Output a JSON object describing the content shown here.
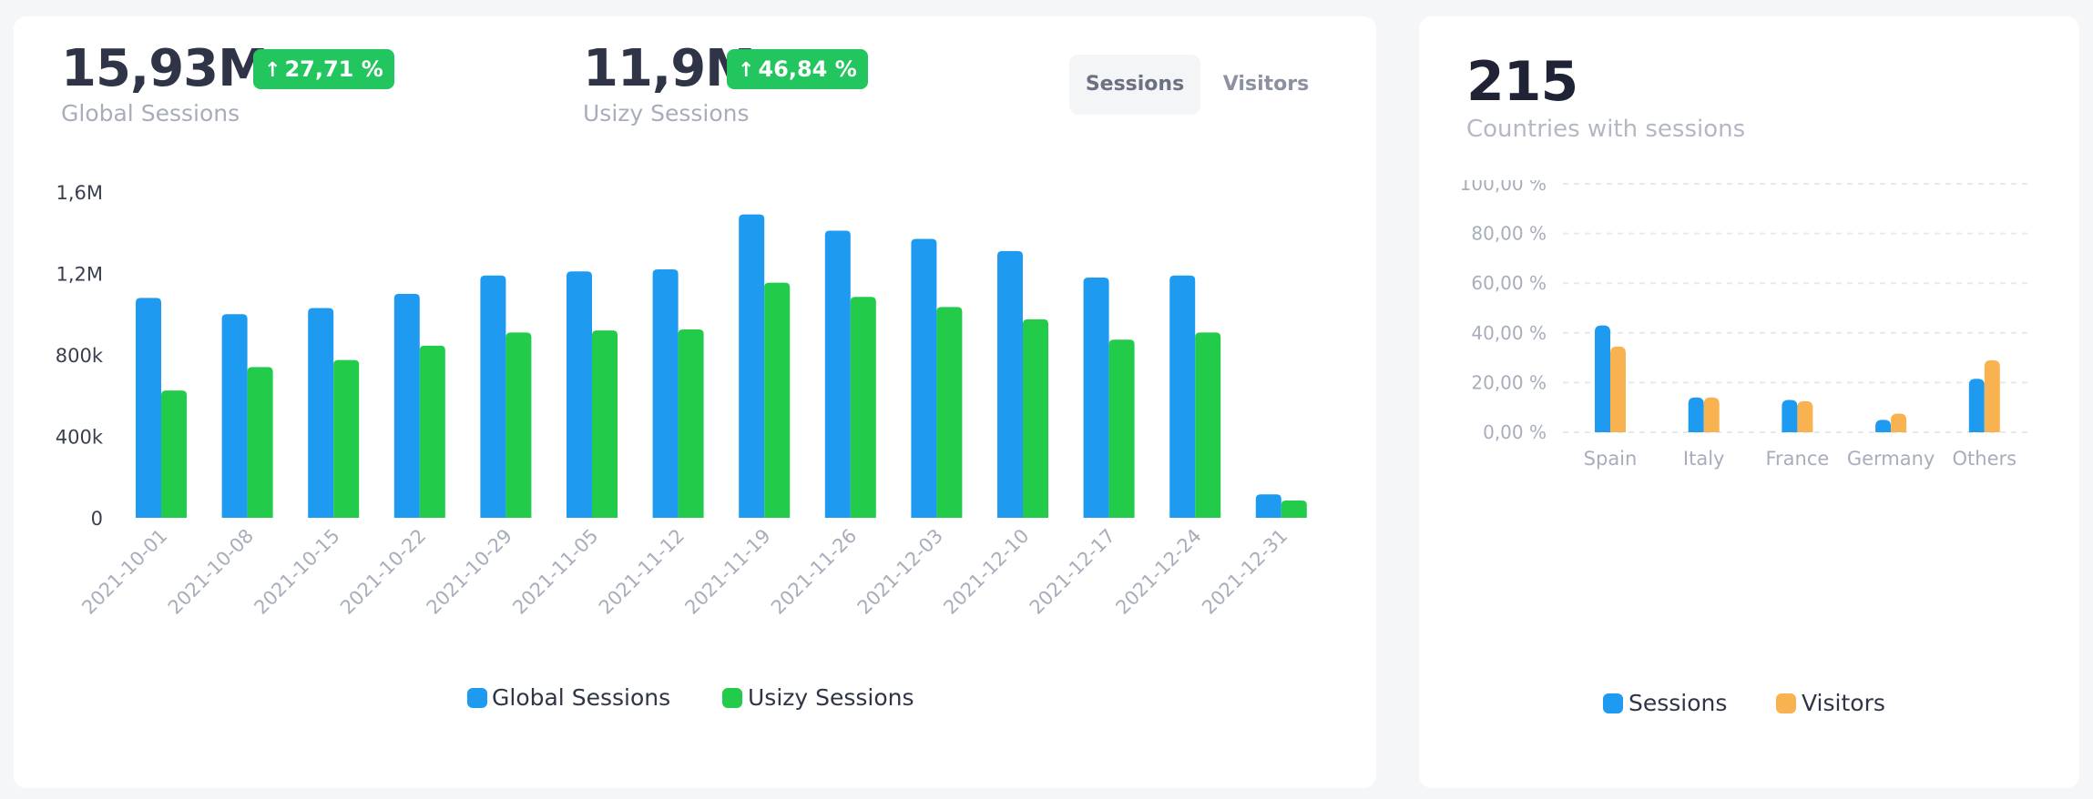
{
  "left_card": {
    "kpis": [
      {
        "value": "15,93M",
        "label": "Global Sessions",
        "change": "27,71 %",
        "change_icon": "arrow-up-icon"
      },
      {
        "value": "11,9M",
        "label": "Usizy Sessions",
        "change": "46,84 %",
        "change_icon": "arrow-up-icon"
      }
    ],
    "toggle": {
      "sessions_label": "Sessions",
      "visitors_label": "Visitors",
      "active": "Sessions"
    }
  },
  "right_card": {
    "value": "215",
    "label": "Countries with sessions"
  },
  "colors": {
    "global": "#1e9bf0",
    "usizy": "#22cc4a",
    "sessions": "#1e9bf0",
    "visitors": "#f8b24f",
    "axis_text": "#3a3f4f",
    "muted_text": "#a7adba",
    "grid": "#e7e9ee"
  },
  "chart_data": [
    {
      "type": "bar",
      "title": "",
      "xlabel": "",
      "ylabel": "",
      "categories": [
        "2021-10-01",
        "2021-10-08",
        "2021-10-15",
        "2021-10-22",
        "2021-10-29",
        "2021-11-05",
        "2021-11-12",
        "2021-11-19",
        "2021-11-26",
        "2021-12-03",
        "2021-12-10",
        "2021-12-17",
        "2021-12-24",
        "2021-12-31"
      ],
      "series": [
        {
          "name": "Global Sessions",
          "values": [
            1080000,
            1000000,
            1030000,
            1100000,
            1190000,
            1210000,
            1220000,
            1490000,
            1410000,
            1370000,
            1310000,
            1180000,
            1190000,
            115000
          ]
        },
        {
          "name": "Usizy Sessions",
          "values": [
            625000,
            740000,
            775000,
            845000,
            910000,
            920000,
            925000,
            1155000,
            1085000,
            1035000,
            975000,
            875000,
            910000,
            85000
          ]
        }
      ],
      "ylim": [
        0,
        1600000
      ],
      "yticks": [
        0,
        400000,
        800000,
        1200000,
        1600000
      ],
      "ytick_labels": [
        "0",
        "400k",
        "800k",
        "1,2M",
        "1,6M"
      ],
      "legend": [
        "Global Sessions",
        "Usizy Sessions"
      ],
      "legend_position": "bottom-center",
      "grid": false
    },
    {
      "type": "bar",
      "title": "",
      "xlabel": "",
      "ylabel": "",
      "categories": [
        "Spain",
        "Italy",
        "France",
        "Germany",
        "Others"
      ],
      "series": [
        {
          "name": "Sessions",
          "values": [
            43,
            14,
            13,
            5,
            21.5
          ]
        },
        {
          "name": "Visitors",
          "values": [
            34.5,
            14,
            12.5,
            7.5,
            29
          ]
        }
      ],
      "ylim": [
        0,
        100
      ],
      "yticks": [
        0,
        20,
        40,
        60,
        80,
        100
      ],
      "ytick_labels": [
        "0,00 %",
        "20,00 %",
        "40,00 %",
        "60,00 %",
        "80,00 %",
        "100,00 %"
      ],
      "legend": [
        "Sessions",
        "Visitors"
      ],
      "legend_position": "bottom-center",
      "grid": true
    }
  ]
}
